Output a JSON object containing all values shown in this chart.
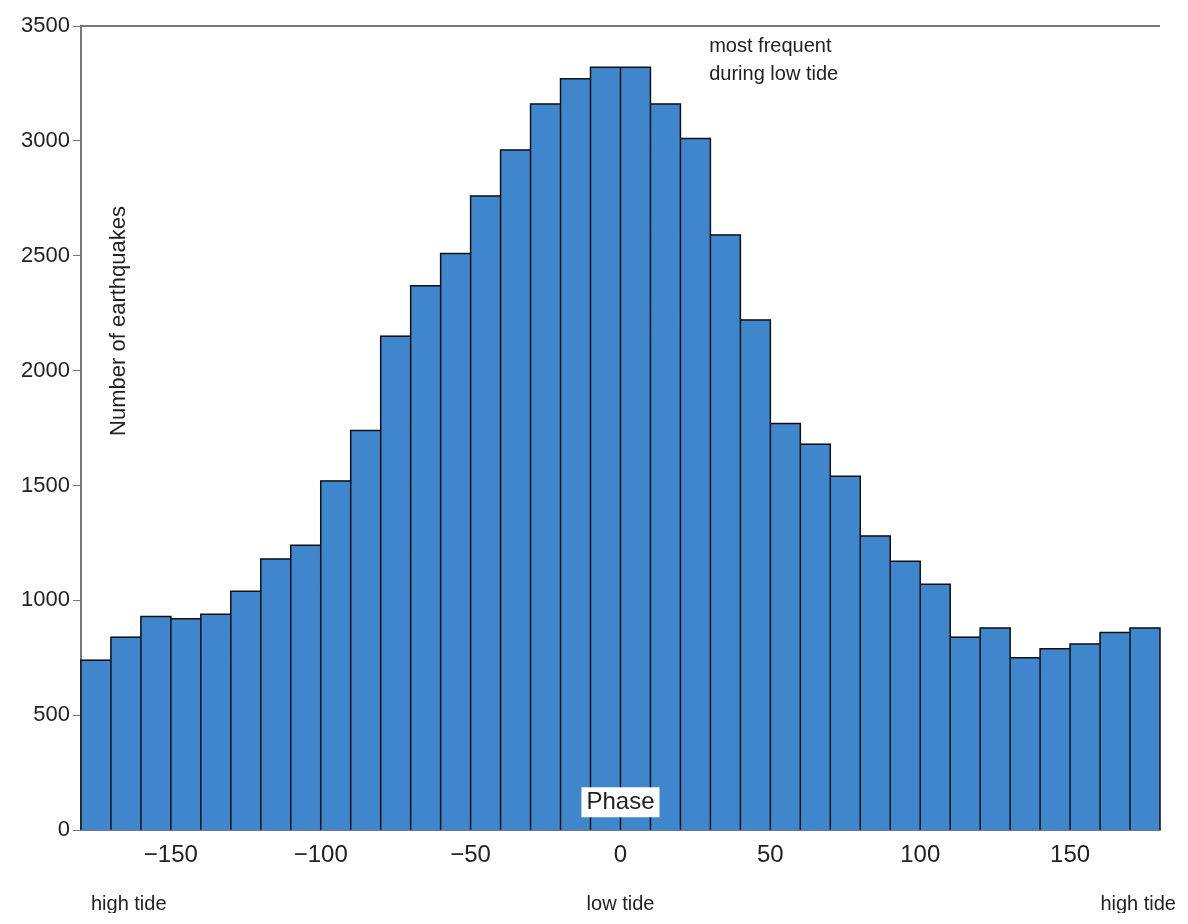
{
  "chart_data": {
    "type": "histogram",
    "xlabel": "Phase",
    "ylabel": "Number of earthquakes",
    "bins": [
      -180,
      -170,
      -160,
      -150,
      -140,
      -130,
      -120,
      -110,
      -100,
      -90,
      -80,
      -70,
      -60,
      -50,
      -40,
      -30,
      -20,
      -10,
      0,
      10,
      20,
      30,
      40,
      50,
      60,
      70,
      80,
      90,
      100,
      110,
      120,
      130,
      140,
      150,
      160,
      170,
      180
    ],
    "values": [
      740,
      840,
      930,
      920,
      940,
      1040,
      1180,
      1240,
      1520,
      1740,
      2150,
      2370,
      2510,
      2760,
      2960,
      3160,
      3270,
      3320,
      3320,
      3160,
      3010,
      2590,
      2220,
      1770,
      1680,
      1540,
      1280,
      1170,
      1070,
      840,
      880,
      750,
      790,
      810,
      860,
      880
    ],
    "color": "#3f86cc",
    "xlim": [
      -180,
      180
    ],
    "xticks": [
      {
        "value": -150,
        "label": "−150"
      },
      {
        "value": -100,
        "label": "−100"
      },
      {
        "value": -50,
        "label": "−50"
      },
      0,
      50,
      100,
      150
    ],
    "ylim": [
      0,
      3500
    ],
    "yticks": [
      0,
      500,
      1000,
      1500,
      2000,
      2500,
      3000,
      3500
    ],
    "annotations": [
      "most frequent\nduring low tide",
      "high tide",
      "low tide",
      "high tide"
    ],
    "grid": false,
    "legend": false
  }
}
